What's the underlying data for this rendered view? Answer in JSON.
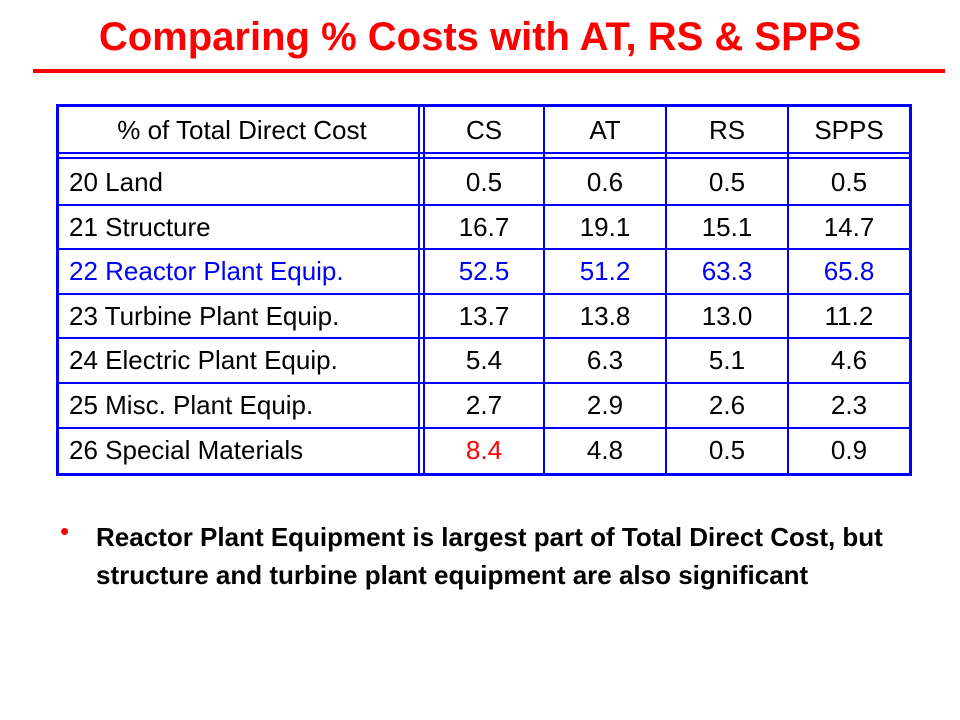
{
  "title": "Comparing % Costs with AT, RS & SPPS",
  "colors": {
    "title": "#ff0000",
    "table_border": "#0000ff",
    "highlight_row": "#0000ff",
    "highlight_cell": "#ff0000",
    "text": "#000000",
    "bullet_dot": "#ff0000"
  },
  "table": {
    "headers": [
      "% of Total Direct Cost",
      "CS",
      "AT",
      "RS",
      "SPPS"
    ],
    "rows": [
      {
        "label": "20  Land",
        "values": [
          "0.5",
          "0.6",
          "0.5",
          "0.5"
        ],
        "highlight": false
      },
      {
        "label": "21  Structure",
        "values": [
          "16.7",
          "19.1",
          "15.1",
          "14.7"
        ],
        "highlight": false
      },
      {
        "label": "22  Reactor Plant Equip.",
        "values": [
          "52.5",
          "51.2",
          "63.3",
          "65.8"
        ],
        "highlight": true
      },
      {
        "label": "23  Turbine Plant Equip.",
        "values": [
          "13.7",
          "13.8",
          "13.0",
          "11.2"
        ],
        "highlight": false
      },
      {
        "label": "24  Electric Plant Equip.",
        "values": [
          "5.4",
          "6.3",
          "5.1",
          "4.6"
        ],
        "highlight": false
      },
      {
        "label": "25  Misc. Plant Equip.",
        "values": [
          "2.7",
          "2.9",
          "2.6",
          "2.3"
        ],
        "highlight": false
      },
      {
        "label": "26  Special Materials",
        "values": [
          "8.4",
          "4.8",
          "0.5",
          "0.9"
        ],
        "highlight": false,
        "red_cells": [
          0
        ]
      }
    ]
  },
  "bullets": [
    "Reactor Plant Equipment is largest part of Total Direct Cost, but structure and turbine plant equipment are also significant"
  ]
}
